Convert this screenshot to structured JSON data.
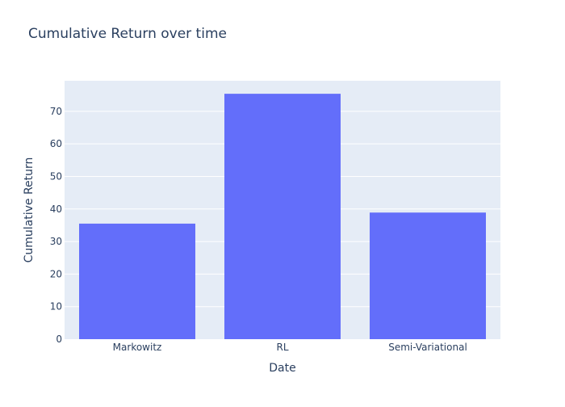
{
  "chart_data": {
    "type": "bar",
    "title": "Cumulative Return over time",
    "xlabel": "Date",
    "ylabel": "Cumulative Return",
    "categories": [
      "Markowitz",
      "RL",
      "Semi-Variational"
    ],
    "values": [
      35.5,
      75.4,
      38.9
    ],
    "ylim": [
      0,
      79.4
    ],
    "yticks": [
      0,
      10,
      20,
      30,
      40,
      50,
      60,
      70
    ],
    "grid": true,
    "legend": "none",
    "colors": {
      "bar": "#636efa",
      "plot_background": "#e5ecf6",
      "grid": "#ffffff",
      "text": "#2a3f5f"
    }
  }
}
